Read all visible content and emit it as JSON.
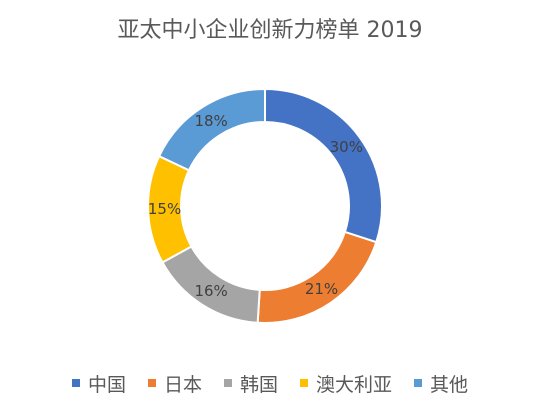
{
  "chart_data": {
    "type": "pie",
    "title": "亚太中小企业创新力榜单 2019",
    "categories": [
      "中国",
      "日本",
      "韩国",
      "澳大利亚",
      "其他"
    ],
    "values": [
      30,
      21,
      16,
      15,
      18
    ],
    "labels": [
      "30%",
      "21%",
      "16%",
      "15%",
      "18%"
    ],
    "colors": [
      "#4472C4",
      "#ED7D31",
      "#A5A5A5",
      "#FFC000",
      "#5B9BD5"
    ],
    "legend_position": "bottom"
  }
}
